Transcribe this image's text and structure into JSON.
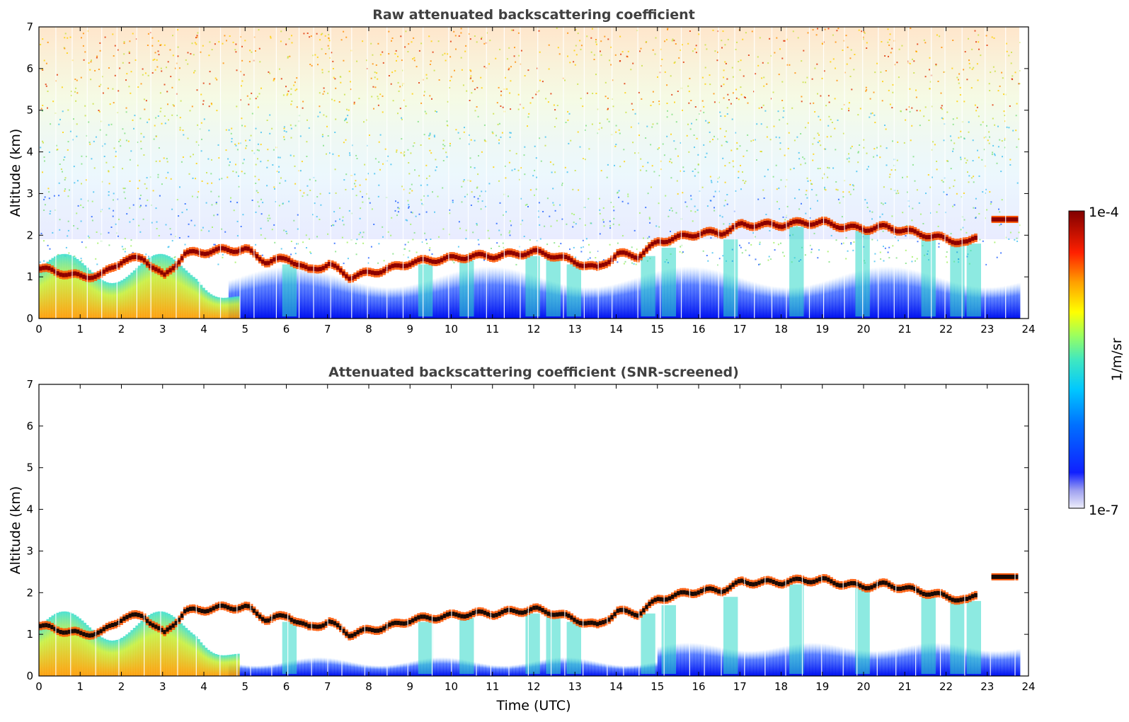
{
  "chart_data": [
    {
      "type": "heatmap",
      "title": "Raw attenuated backscattering coefficient",
      "xlabel": "",
      "ylabel": "Altitude (km)",
      "xlim": [
        0,
        24
      ],
      "ylim": [
        0,
        7
      ],
      "xticks": [
        "0",
        "1",
        "2",
        "3",
        "4",
        "5",
        "6",
        "7",
        "8",
        "9",
        "10",
        "11",
        "12",
        "13",
        "14",
        "15",
        "16",
        "17",
        "18",
        "19",
        "20",
        "21",
        "22",
        "23",
        "24"
      ],
      "yticks": [
        "0",
        "1",
        "2",
        "3",
        "4",
        "5",
        "6",
        "7"
      ],
      "data_end_time": 23.8,
      "cloud_layer": {
        "time": [
          0,
          0.5,
          1.0,
          1.5,
          2.0,
          2.5,
          3.0,
          3.5,
          4.0,
          4.5,
          5.0,
          5.5,
          6.0,
          6.5,
          7.0,
          7.5,
          8.0,
          8.5,
          9.0,
          9.5,
          10.0,
          10.5,
          11.0,
          11.5,
          12.0,
          12.5,
          13.0,
          13.5,
          14.0,
          14.5,
          15.0,
          15.5,
          16.0,
          16.5,
          17.0,
          17.5,
          18.0,
          18.5,
          19.0,
          19.5,
          20.0,
          20.5,
          21.0,
          21.5,
          22.0,
          22.5,
          22.7
        ],
        "altitude_km": [
          1.2,
          1.1,
          1.0,
          1.05,
          1.4,
          1.45,
          1.0,
          1.55,
          1.6,
          1.65,
          1.65,
          1.35,
          1.45,
          1.15,
          1.3,
          1.0,
          1.1,
          1.2,
          1.35,
          1.4,
          1.45,
          1.5,
          1.5,
          1.55,
          1.6,
          1.5,
          1.35,
          1.2,
          1.55,
          1.5,
          1.85,
          1.95,
          2.05,
          2.05,
          2.25,
          2.25,
          2.25,
          2.3,
          2.3,
          2.2,
          2.15,
          2.2,
          2.1,
          2.0,
          1.9,
          1.8,
          1.95
        ]
      },
      "upper_layer": {
        "time": [
          23.1,
          23.75
        ],
        "altitude_km": [
          2.38,
          2.38
        ]
      }
    },
    {
      "type": "heatmap",
      "title": "Attenuated backscattering coefficient (SNR-screened)",
      "xlabel": "Time (UTC)",
      "ylabel": "Altitude (km)",
      "xlim": [
        0,
        24
      ],
      "ylim": [
        0,
        7
      ],
      "xticks": [
        "0",
        "1",
        "2",
        "3",
        "4",
        "5",
        "6",
        "7",
        "8",
        "9",
        "10",
        "11",
        "12",
        "13",
        "14",
        "15",
        "16",
        "17",
        "18",
        "19",
        "20",
        "21",
        "22",
        "23",
        "24"
      ],
      "yticks": [
        "0",
        "1",
        "2",
        "3",
        "4",
        "5",
        "6",
        "7"
      ],
      "data_end_time": 23.8
    }
  ],
  "colorbar": {
    "label": "1/m/sr",
    "max_label": "1e-4",
    "min_label": "1e-7",
    "scale": "log",
    "colormap": [
      "#e8e8f8",
      "#0000ff",
      "#00c8ff",
      "#7fff7f",
      "#ffff00",
      "#ff7f00",
      "#ff0000",
      "#800000"
    ]
  },
  "colors": {
    "cloud_core": "#8b0000",
    "cloud_edge": "#ff5500",
    "boundary_layer": "#0a14ff",
    "aerosol": "#ffb400",
    "screened_cloud_core": "#1a0a05"
  }
}
